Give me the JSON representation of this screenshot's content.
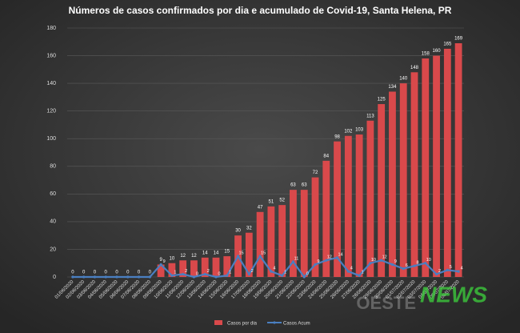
{
  "chart_data": {
    "type": "bar_line",
    "title": "Números de casos confirmados  por dia e acumulado de Covid-19, Santa Helena, PR",
    "categories": [
      "01/06/2020",
      "02/06/2020",
      "03/06/2020",
      "04/06/2020",
      "05/06/2020",
      "06/06/2020",
      "07/06/2020",
      "08/06/2020",
      "09/06/2020",
      "10/06/2020",
      "11/06/2020",
      "12/06/2020",
      "13/06/2020",
      "14/06/2020",
      "15/06/2020",
      "16/06/2020",
      "17/06/2020",
      "18/06/2020",
      "19/06/2020",
      "20/06/2020",
      "21/06/2020",
      "22/06/2020",
      "23/06/2020",
      "24/06/2020",
      "25/06/2020",
      "26/06/2020",
      "27/06/2020",
      "28/06/2020",
      "29/06/2020",
      "30/06/2020",
      "01/07/2020",
      "02/07/2020",
      "03/07/2020",
      "04/07/2020",
      "05/07/2020",
      "06/07/2020"
    ],
    "series": [
      {
        "name": "Casos por dia",
        "color": "#d9494b",
        "kind": "bar",
        "values": [
          0,
          0,
          0,
          0,
          0,
          0,
          0,
          0,
          9,
          10,
          12,
          12,
          14,
          14,
          15,
          30,
          32,
          47,
          51,
          52,
          63,
          63,
          72,
          84,
          98,
          102,
          103,
          113,
          125,
          134,
          140,
          148,
          158,
          160,
          165,
          169
        ]
      },
      {
        "name": "Casos Acum",
        "color": "#4a7fc1",
        "kind": "line",
        "values": [
          0,
          0,
          0,
          0,
          0,
          0,
          0,
          0,
          9,
          1,
          2,
          0,
          2,
          0,
          1,
          15,
          2,
          15,
          4,
          1,
          11,
          0,
          9,
          12,
          14,
          4,
          1,
          10,
          12,
          9,
          6,
          8,
          10,
          2,
          5,
          4
        ]
      }
    ],
    "ylim": [
      0,
      180
    ],
    "yticks": [
      0,
      20,
      40,
      60,
      80,
      100,
      120,
      140,
      160,
      180
    ],
    "grid": true,
    "legend": "bottom"
  },
  "watermark": [
    "OESTE",
    "NEWS"
  ]
}
